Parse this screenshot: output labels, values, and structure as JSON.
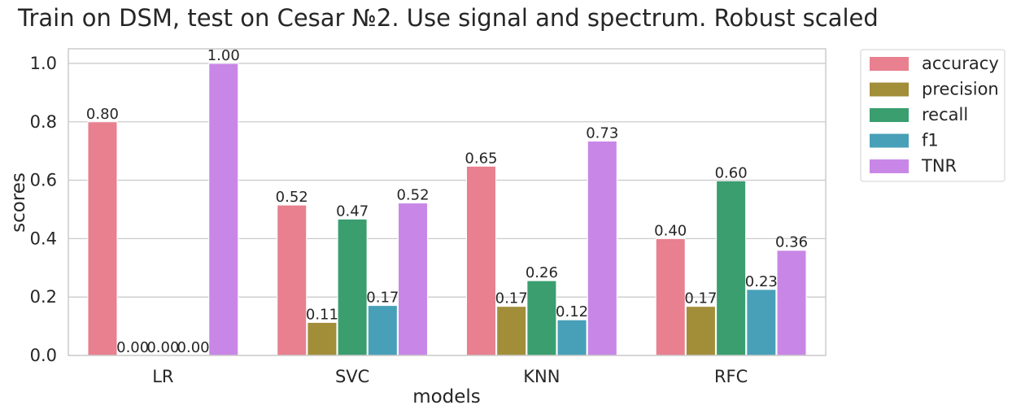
{
  "chart_data": {
    "type": "bar",
    "title": "Train on DSM, test on Cesar №2. Use signal and spectrum. Robust scaled",
    "xlabel": "models",
    "ylabel": "scores",
    "categories": [
      "LR",
      "SVC",
      "KNN",
      "RFC"
    ],
    "ylim": [
      0,
      1.05
    ],
    "yticks": [
      "0.0",
      "0.2",
      "0.4",
      "0.6",
      "0.8",
      "1.0"
    ],
    "grid": true,
    "legend_position": "outside-right",
    "series": [
      {
        "name": "accuracy",
        "color": "#e8808f",
        "values": [
          0.8,
          0.515,
          0.648,
          0.4
        ],
        "labels": [
          "0.80",
          "0.52",
          "0.65",
          "0.40"
        ]
      },
      {
        "name": "precision",
        "color": "#a28e39",
        "values": [
          0.0,
          0.113,
          0.168,
          0.168
        ],
        "labels": [
          "0.00",
          "0.11",
          "0.17",
          "0.17"
        ]
      },
      {
        "name": "recall",
        "color": "#3a9e6f",
        "values": [
          0.0,
          0.467,
          0.256,
          0.598
        ],
        "labels": [
          "0.00",
          "0.47",
          "0.26",
          "0.60"
        ]
      },
      {
        "name": "f1",
        "color": "#48a0b8",
        "values": [
          0.0,
          0.171,
          0.122,
          0.226
        ],
        "labels": [
          "0.00",
          "0.17",
          "0.12",
          "0.23"
        ]
      },
      {
        "name": "TNR",
        "color": "#c887e6",
        "values": [
          1.0,
          0.522,
          0.734,
          0.36
        ],
        "labels": [
          "1.00",
          "0.52",
          "0.73",
          "0.36"
        ]
      }
    ]
  }
}
